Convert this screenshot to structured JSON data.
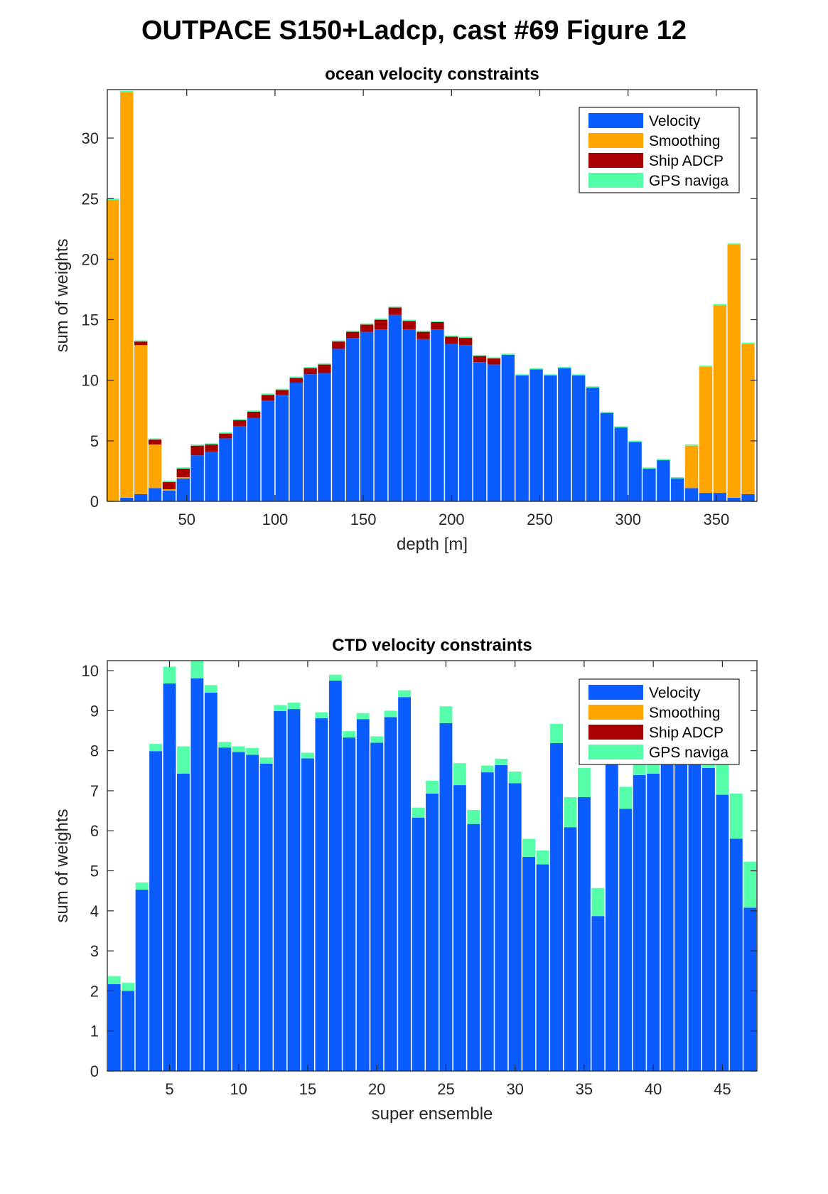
{
  "figure_title": "OUTPACE S150+Ladcp, cast #69  Figure 12",
  "colors": {
    "Velocity": "#0a5cff",
    "Smoothing": "#ffa500",
    "Ship ADCP": "#a80000",
    "GPS naviga": "#55ffaa"
  },
  "chart_data": [
    {
      "type": "bar",
      "stacked": true,
      "title": "ocean velocity constraints",
      "xlabel": "depth [m]",
      "ylabel": "sum of weights",
      "xlim": [
        5,
        373
      ],
      "ylim": [
        0,
        34
      ],
      "xticks": [
        50,
        100,
        150,
        200,
        250,
        300,
        350
      ],
      "yticks": [
        0,
        5,
        10,
        15,
        20,
        25,
        30
      ],
      "bar_width": 7.4,
      "legend": [
        "Velocity",
        "Smoothing",
        "Ship ADCP",
        "GPS naviga"
      ],
      "legend_position": "top-right",
      "x": [
        8,
        16,
        24,
        32,
        40,
        48,
        56,
        64,
        72,
        80,
        88,
        96,
        104,
        112,
        120,
        128,
        136,
        144,
        152,
        160,
        168,
        176,
        184,
        192,
        200,
        208,
        216,
        224,
        232,
        240,
        248,
        256,
        264,
        272,
        280,
        288,
        296,
        304,
        312,
        320,
        328,
        336,
        344,
        352,
        360,
        368
      ],
      "series": [
        {
          "name": "Velocity",
          "values": [
            0,
            0.3,
            0.6,
            1.1,
            0.9,
            1.9,
            3.8,
            4.1,
            5.2,
            6.2,
            6.9,
            8.3,
            8.8,
            9.8,
            10.5,
            10.6,
            12.6,
            13.5,
            14.0,
            14.2,
            15.4,
            14.2,
            13.4,
            14.2,
            13.0,
            12.9,
            11.5,
            11.3,
            12.1,
            10.4,
            10.9,
            10.4,
            11.0,
            10.4,
            9.4,
            7.3,
            6.1,
            4.9,
            2.7,
            3.4,
            1.9,
            1.1,
            0.7,
            0.7,
            0.3,
            0.6
          ]
        },
        {
          "name": "Smoothing",
          "values": [
            24.9,
            33.5,
            12.3,
            3.6,
            0.1,
            0.1,
            0,
            0,
            0,
            0,
            0,
            0,
            0,
            0,
            0,
            0,
            0,
            0,
            0,
            0,
            0,
            0,
            0,
            0,
            0,
            0,
            0,
            0,
            0,
            0,
            0,
            0,
            0,
            0,
            0,
            0,
            0,
            0,
            0,
            0,
            0,
            3.5,
            10.4,
            15.5,
            20.9,
            12.4
          ]
        },
        {
          "name": "Ship ADCP",
          "values": [
            0,
            0,
            0.3,
            0.4,
            0.6,
            0.7,
            0.8,
            0.6,
            0.4,
            0.5,
            0.5,
            0.5,
            0.4,
            0.4,
            0.5,
            0.7,
            0.6,
            0.5,
            0.6,
            0.8,
            0.6,
            0.7,
            0.6,
            0.6,
            0.6,
            0.6,
            0.5,
            0.5,
            0,
            0,
            0,
            0,
            0,
            0,
            0,
            0,
            0,
            0,
            0,
            0,
            0,
            0,
            0,
            0,
            0,
            0
          ]
        },
        {
          "name": "GPS naviga",
          "values": [
            0.1,
            0.1,
            0.1,
            0.1,
            0.1,
            0.1,
            0.1,
            0.1,
            0.1,
            0.1,
            0.1,
            0.1,
            0.1,
            0.1,
            0.1,
            0.1,
            0.1,
            0.1,
            0.1,
            0.1,
            0.1,
            0.1,
            0.1,
            0.1,
            0.1,
            0.1,
            0.1,
            0.1,
            0.1,
            0.1,
            0.1,
            0.1,
            0.1,
            0.1,
            0.1,
            0.1,
            0.1,
            0.1,
            0.1,
            0.1,
            0.1,
            0.1,
            0.1,
            0.1,
            0.1,
            0.1
          ]
        }
      ]
    },
    {
      "type": "bar",
      "stacked": true,
      "title": "CTD velocity constraints",
      "xlabel": "super ensemble",
      "ylabel": "sum of weights",
      "xlim": [
        0.5,
        47.5
      ],
      "ylim": [
        0,
        10.25
      ],
      "xticks": [
        5,
        10,
        15,
        20,
        25,
        30,
        35,
        40,
        45
      ],
      "yticks": [
        0,
        1,
        2,
        3,
        4,
        5,
        6,
        7,
        8,
        9,
        10
      ],
      "bar_width": 0.92,
      "legend": [
        "Velocity",
        "Smoothing",
        "Ship ADCP",
        "GPS naviga"
      ],
      "legend_position": "top-right",
      "x": [
        1,
        2,
        3,
        4,
        5,
        6,
        7,
        8,
        9,
        10,
        11,
        12,
        13,
        14,
        15,
        16,
        17,
        18,
        19,
        20,
        21,
        22,
        23,
        24,
        25,
        26,
        27,
        28,
        29,
        30,
        31,
        32,
        33,
        34,
        35,
        36,
        37,
        38,
        39,
        40,
        41,
        42,
        43,
        44,
        45,
        46,
        47
      ],
      "series": [
        {
          "name": "Velocity",
          "values": [
            2.17,
            2.0,
            4.53,
            7.99,
            9.68,
            7.43,
            9.81,
            9.45,
            8.08,
            7.97,
            7.9,
            7.68,
            8.99,
            9.04,
            7.81,
            8.81,
            9.75,
            8.33,
            8.79,
            8.2,
            8.84,
            9.34,
            6.33,
            6.93,
            8.69,
            7.14,
            6.17,
            7.46,
            7.64,
            7.19,
            5.35,
            5.16,
            8.19,
            6.09,
            6.84,
            3.87,
            7.9,
            6.55,
            7.39,
            7.43,
            7.9,
            7.95,
            7.9,
            7.57,
            6.9,
            5.8,
            4.08
          ]
        },
        {
          "name": "Smoothing",
          "values": [
            0,
            0,
            0,
            0,
            0,
            0,
            0,
            0,
            0,
            0,
            0,
            0,
            0,
            0,
            0,
            0,
            0,
            0,
            0,
            0,
            0,
            0,
            0,
            0,
            0,
            0,
            0,
            0,
            0,
            0,
            0,
            0,
            0,
            0,
            0,
            0,
            0,
            0,
            0,
            0,
            0,
            0,
            0,
            0,
            0,
            0,
            0
          ]
        },
        {
          "name": "Ship ADCP",
          "values": [
            0,
            0,
            0,
            0,
            0,
            0,
            0,
            0,
            0,
            0,
            0,
            0,
            0,
            0,
            0,
            0,
            0,
            0,
            0,
            0,
            0,
            0,
            0,
            0,
            0,
            0,
            0,
            0,
            0,
            0,
            0,
            0,
            0,
            0,
            0,
            0,
            0,
            0,
            0,
            0,
            0,
            0,
            0,
            0,
            0,
            0,
            0
          ]
        },
        {
          "name": "GPS naviga",
          "values": [
            0.2,
            0.2,
            0.18,
            0.18,
            0.42,
            0.68,
            0.48,
            0.19,
            0.14,
            0.14,
            0.17,
            0.15,
            0.15,
            0.16,
            0.14,
            0.15,
            0.15,
            0.16,
            0.15,
            0.16,
            0.16,
            0.17,
            0.25,
            0.32,
            0.42,
            0.55,
            0.35,
            0.17,
            0.16,
            0.29,
            0.45,
            0.35,
            0.48,
            0.75,
            0.73,
            0.7,
            0.1,
            0.55,
            0.3,
            0.3,
            0.1,
            0.1,
            0.1,
            0.12,
            0.78,
            1.13,
            1.15
          ]
        }
      ]
    }
  ]
}
